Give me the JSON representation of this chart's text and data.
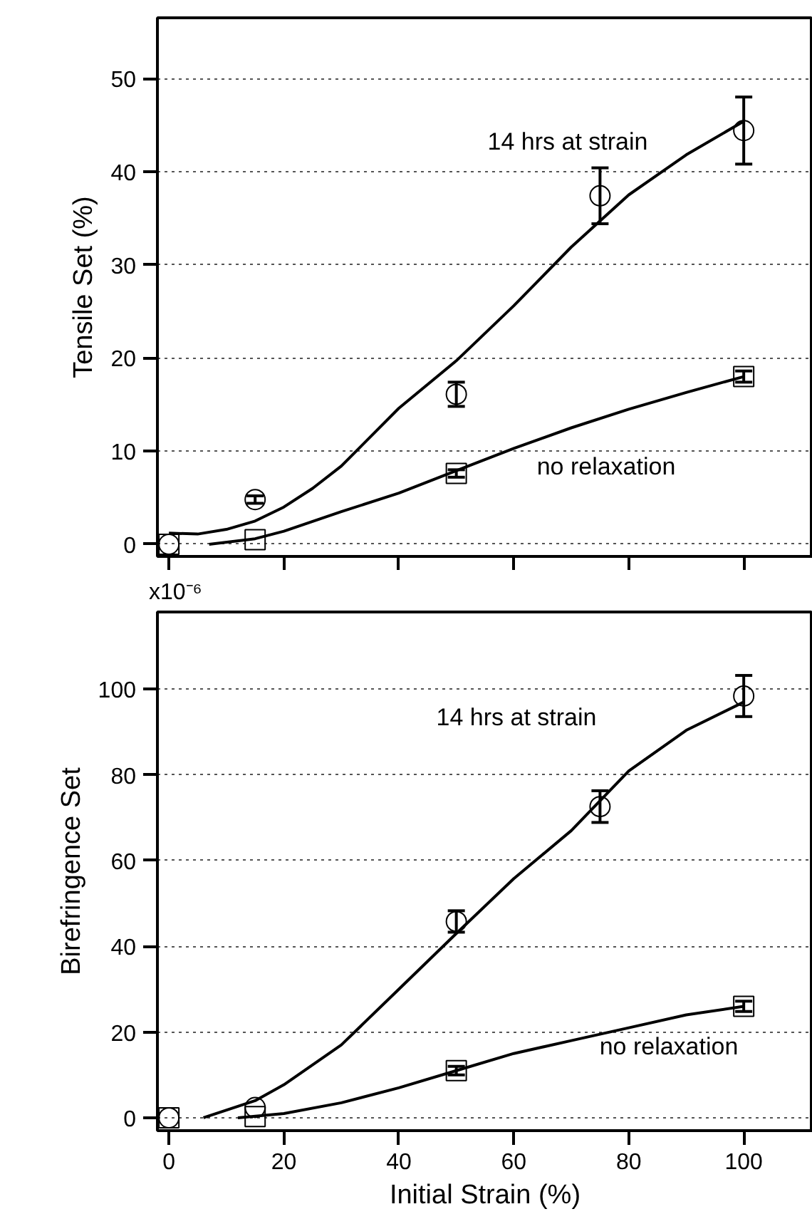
{
  "chart_data": [
    {
      "type": "scatter",
      "ylabel": "Tensile Set (%)",
      "xlim": [
        -2,
        112
      ],
      "xticks": [
        0,
        20,
        40,
        60,
        80,
        100
      ],
      "ylim": [
        -1.3,
        56.5
      ],
      "yticks": [
        0,
        10,
        20,
        30,
        40,
        50
      ],
      "tick_labels": "y",
      "grid": "y",
      "series": [
        {
          "marker": "circle",
          "color": "#000000",
          "x": [
            0,
            15,
            50,
            75,
            100
          ],
          "values": [
            0,
            4.8,
            16.1,
            37.4,
            44.4
          ],
          "errors": [
            null,
            0.4,
            1.3,
            3,
            3.6
          ]
        },
        {
          "marker": "square",
          "color": "#000000",
          "x": [
            0,
            15,
            50,
            100
          ],
          "values": [
            0,
            0.5,
            7.6,
            18
          ],
          "errors": [
            null,
            null,
            0.4,
            0.6
          ]
        },
        {
          "type": "line",
          "line_style": "solid",
          "color": "#000000",
          "x": [
            0,
            5,
            10,
            15,
            20,
            25,
            30,
            40,
            50,
            60,
            70,
            80,
            90,
            100
          ],
          "values": [
            1.2,
            1.1,
            1.6,
            2.5,
            4,
            6,
            8.4,
            14.6,
            19.7,
            25.6,
            31.9,
            37.5,
            41.8,
            45.4
          ]
        },
        {
          "type": "line",
          "line_style": "solid",
          "color": "#000000",
          "x": [
            7,
            15,
            20,
            30,
            40,
            50,
            60,
            70,
            80,
            90,
            100
          ],
          "values": [
            0,
            0.6,
            1.4,
            3.5,
            5.5,
            7.9,
            10.3,
            12.5,
            14.5,
            16.3,
            18
          ]
        }
      ],
      "annotations": [
        "14 hrs at strain",
        "no relaxation"
      ]
    },
    {
      "type": "scatter",
      "xlabel": "Initial Strain (%)",
      "ylabel": "Birefringence Set",
      "xlim": [
        -2,
        112
      ],
      "xticks": [
        0,
        20,
        40,
        60,
        80,
        100
      ],
      "ylim": [
        -3,
        118
      ],
      "yticks": [
        0,
        20,
        40,
        60,
        80,
        100
      ],
      "grid": "y",
      "series": [
        {
          "marker": "circle",
          "color": "#000000",
          "x": [
            0,
            15,
            50,
            75,
            100
          ],
          "values": [
            0,
            2.4,
            45.8,
            72.6,
            98.4
          ],
          "errors": [
            null,
            null,
            2.5,
            3.7,
            4.8
          ]
        },
        {
          "marker": "square",
          "color": "#000000",
          "x": [
            0,
            15,
            50,
            100
          ],
          "values": [
            0,
            0.3,
            11,
            26
          ],
          "errors": [
            null,
            null,
            1,
            1.2
          ]
        },
        {
          "type": "line",
          "line_style": "solid",
          "color": "#000000",
          "x": [
            6,
            15,
            20,
            30,
            40,
            50,
            60,
            70,
            80,
            90,
            100
          ],
          "values": [
            0,
            4,
            7.7,
            17,
            30,
            43,
            55.8,
            67,
            80.9,
            90.4,
            97
          ]
        },
        {
          "type": "line",
          "line_style": "solid",
          "color": "#000000",
          "x": [
            12,
            20,
            30,
            40,
            50,
            60,
            70,
            80,
            90,
            100
          ],
          "values": [
            0,
            1,
            3.5,
            7,
            11,
            15,
            18,
            21,
            24,
            26
          ]
        }
      ],
      "annotations": [
        "14 hrs at strain",
        "no relaxation",
        "x10⁻⁶"
      ]
    }
  ]
}
